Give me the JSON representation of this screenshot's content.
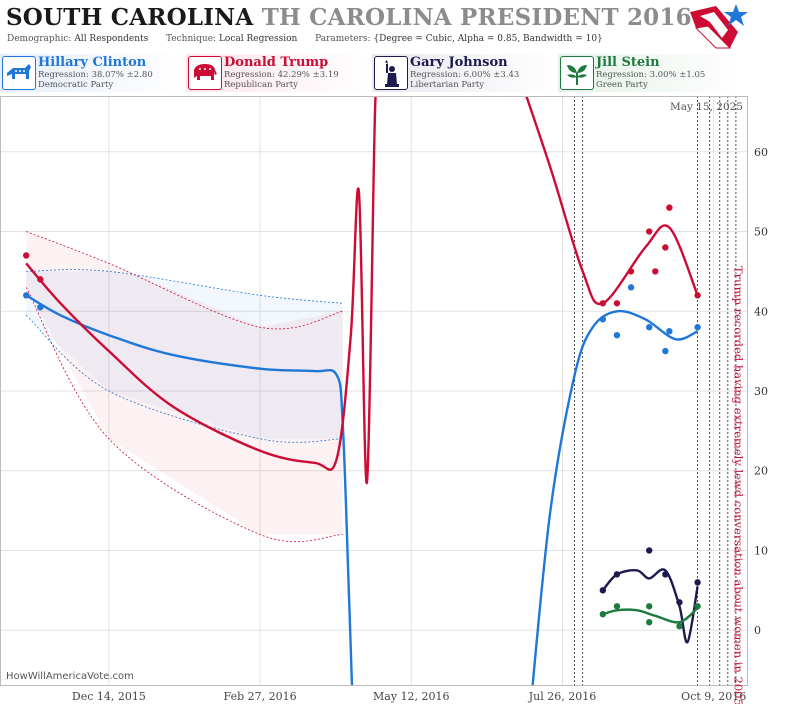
{
  "header": {
    "title_state": "SOUTH CAROLINA",
    "title_rest": "TH CAROLINA PRESIDENT 2016",
    "demographic_label": "Demographic:",
    "demographic_value": "All Respondents",
    "technique_label": "Technique:",
    "technique_value": "Local Regression",
    "parameters_label": "Parameters:",
    "parameters_value": "{Degree = Cubic, Alpha = 0.85, Bandwidth = 10}"
  },
  "candidates": [
    {
      "name": "Hillary Clinton",
      "regression": "Regression: 38.07% ±2.80",
      "party": "Democratic Party",
      "color": "#1f77d8",
      "icon": "donkey-icon"
    },
    {
      "name": "Donald Trump",
      "regression": "Regression: 42.29% ±3.19",
      "party": "Republican Party",
      "color": "#cc0c35",
      "icon": "elephant-icon"
    },
    {
      "name": "Gary Johnson",
      "regression": "Regression: 6.00% ±3.43",
      "party": "Libertarian Party",
      "color": "#1d1a4f",
      "icon": "liberty-torch-icon"
    },
    {
      "name": "Jill Stein",
      "regression": "Regression: 3.00% ±1.05",
      "party": "Green Party",
      "color": "#1e7a3e",
      "icon": "leaf-icon"
    }
  ],
  "date_stamp": "May 15, 2025",
  "credit": "HowWillAmericaVote.com",
  "annotation": "Trump recorded having extremely lewd conversation about women in 2005",
  "chart_data": {
    "type": "line",
    "title": "SOUTH CAROLINA TH CAROLINA PRESIDENT 2016",
    "x_type": "date",
    "x_ticks": [
      "Dec 14, 2015",
      "Feb 27, 2016",
      "May 12, 2016",
      "Jul 26, 2016",
      "Oct 9, 2016"
    ],
    "xlim": [
      "2015-10-21",
      "2016-10-26"
    ],
    "y_ticks": [
      0,
      10,
      20,
      30,
      40,
      50,
      60
    ],
    "ylim": [
      -7,
      67
    ],
    "grid": true,
    "event_date": "2016-10-07",
    "series": [
      {
        "name": "Hillary Clinton",
        "color": "#1f77d8",
        "points": [
          [
            "2015-11-03",
            42
          ],
          [
            "2015-11-10",
            40.5
          ],
          [
            "2016-08-15",
            39
          ],
          [
            "2016-08-22",
            37
          ],
          [
            "2016-08-29",
            43
          ],
          [
            "2016-09-07",
            38
          ],
          [
            "2016-09-15",
            35
          ],
          [
            "2016-09-17",
            37.5
          ],
          [
            "2016-10-01",
            38
          ]
        ],
        "trend": [
          [
            "2015-11-03",
            42
          ],
          [
            "2015-11-20",
            39.5
          ],
          [
            "2015-12-14",
            37
          ],
          [
            "2016-01-15",
            34.5
          ],
          [
            "2016-02-27",
            32.8
          ],
          [
            "2016-03-25",
            32.5
          ],
          [
            "2016-04-05",
            32
          ],
          [
            "2016-04-08",
            26
          ],
          [
            "2016-04-11",
            5
          ],
          [
            "2016-04-13",
            -10
          ]
        ],
        "trend2": [
          [
            "2016-07-10",
            -10
          ],
          [
            "2016-07-20",
            15
          ],
          [
            "2016-08-01",
            32
          ],
          [
            "2016-08-10",
            38
          ],
          [
            "2016-08-22",
            40
          ],
          [
            "2016-09-05",
            39
          ],
          [
            "2016-09-20",
            36.5
          ],
          [
            "2016-10-01",
            37.5
          ]
        ],
        "band_upper": [
          [
            "2015-11-03",
            45
          ],
          [
            "2015-12-14",
            45
          ],
          [
            "2016-02-27",
            42
          ],
          [
            "2016-04-08",
            41
          ]
        ],
        "band_lower": [
          [
            "2015-11-03",
            39.5
          ],
          [
            "2015-12-14",
            30
          ],
          [
            "2016-02-27",
            24
          ],
          [
            "2016-04-08",
            24
          ]
        ]
      },
      {
        "name": "Donald Trump",
        "color": "#cc0c35",
        "points": [
          [
            "2015-11-03",
            47
          ],
          [
            "2015-11-10",
            44
          ],
          [
            "2016-08-15",
            41
          ],
          [
            "2016-08-22",
            41
          ],
          [
            "2016-08-29",
            45
          ],
          [
            "2016-09-07",
            50
          ],
          [
            "2016-09-10",
            45
          ],
          [
            "2016-09-15",
            48
          ],
          [
            "2016-09-17",
            53
          ],
          [
            "2016-10-01",
            42
          ]
        ],
        "trend": [
          [
            "2015-11-03",
            46
          ],
          [
            "2015-11-20",
            41
          ],
          [
            "2015-12-14",
            35
          ],
          [
            "2016-01-15",
            28
          ],
          [
            "2016-02-27",
            22.5
          ],
          [
            "2016-03-25",
            21
          ],
          [
            "2016-04-05",
            21.5
          ],
          [
            "2016-04-12",
            37
          ],
          [
            "2016-04-16",
            55
          ],
          [
            "2016-04-20",
            18.5
          ],
          [
            "2016-04-24",
            65
          ],
          [
            "2016-04-26",
            70
          ]
        ],
        "trend2": [
          [
            "2016-07-04",
            70
          ],
          [
            "2016-07-20",
            58
          ],
          [
            "2016-08-05",
            45
          ],
          [
            "2016-08-15",
            41
          ],
          [
            "2016-09-05",
            48
          ],
          [
            "2016-09-17",
            50.5
          ],
          [
            "2016-10-01",
            42
          ]
        ],
        "band_upper": [
          [
            "2015-11-03",
            50
          ],
          [
            "2015-12-14",
            46
          ],
          [
            "2016-02-27",
            38
          ],
          [
            "2016-04-08",
            40
          ]
        ],
        "band_lower": [
          [
            "2015-11-03",
            43
          ],
          [
            "2015-12-14",
            24
          ],
          [
            "2016-02-27",
            12
          ],
          [
            "2016-04-08",
            12
          ]
        ]
      },
      {
        "name": "Gary Johnson",
        "color": "#1d1a4f",
        "points": [
          [
            "2016-08-15",
            5
          ],
          [
            "2016-08-22",
            7
          ],
          [
            "2016-09-07",
            10
          ],
          [
            "2016-09-15",
            7
          ],
          [
            "2016-09-22",
            3.5
          ],
          [
            "2016-10-01",
            6
          ]
        ],
        "trend": [
          [
            "2016-08-15",
            5
          ],
          [
            "2016-08-22",
            7
          ],
          [
            "2016-09-01",
            7.5
          ],
          [
            "2016-09-07",
            6.5
          ],
          [
            "2016-09-15",
            7.5
          ],
          [
            "2016-09-22",
            3
          ],
          [
            "2016-09-26",
            -1.5
          ],
          [
            "2016-10-01",
            5.5
          ]
        ]
      },
      {
        "name": "Jill Stein",
        "color": "#1e7a3e",
        "points": [
          [
            "2016-08-15",
            2
          ],
          [
            "2016-08-22",
            3
          ],
          [
            "2016-09-07",
            3
          ],
          [
            "2016-09-07",
            1
          ],
          [
            "2016-09-22",
            0.5
          ],
          [
            "2016-10-01",
            3
          ]
        ],
        "trend": [
          [
            "2016-08-15",
            2
          ],
          [
            "2016-08-22",
            2.5
          ],
          [
            "2016-09-01",
            2.5
          ],
          [
            "2016-09-10",
            1.8
          ],
          [
            "2016-09-22",
            1
          ],
          [
            "2016-10-01",
            2.8
          ]
        ]
      }
    ]
  }
}
